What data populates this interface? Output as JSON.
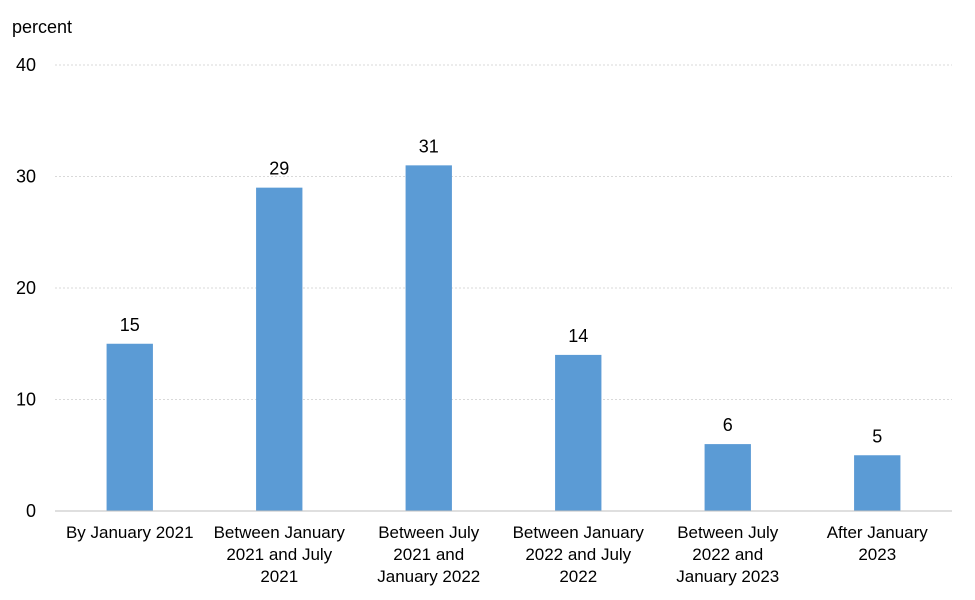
{
  "chart_data": {
    "type": "bar",
    "title": "",
    "xlabel": "",
    "ylabel": "percent",
    "ylim": [
      0,
      40
    ],
    "yticks": [
      0,
      10,
      20,
      30,
      40
    ],
    "grid": true,
    "legend": "none",
    "bar_color": "#5b9bd5",
    "categories": [
      [
        "By January 2021"
      ],
      [
        "Between January",
        "2021 and July",
        "2021"
      ],
      [
        "Between July",
        "2021 and",
        "January 2022"
      ],
      [
        "Between January",
        "2022 and July",
        "2022"
      ],
      [
        "Between July",
        "2022 and",
        "January 2023"
      ],
      [
        "After January",
        "2023"
      ]
    ],
    "values": [
      15,
      29,
      31,
      14,
      6,
      5
    ],
    "data_labels": [
      "15",
      "29",
      "31",
      "14",
      "6",
      "5"
    ]
  }
}
